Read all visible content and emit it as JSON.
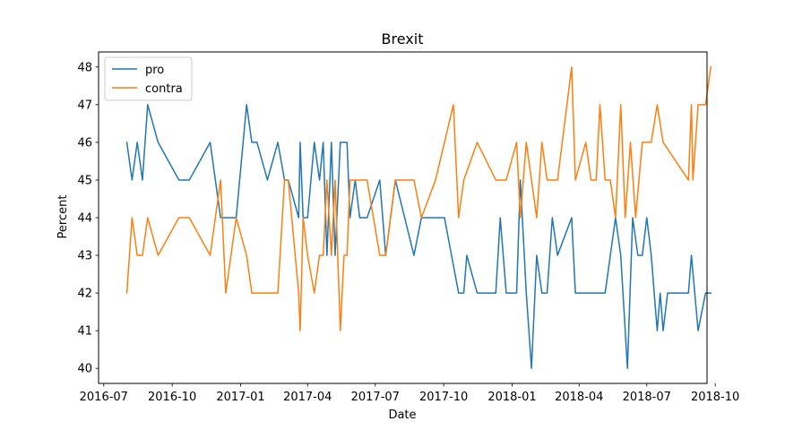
{
  "chart_data": {
    "type": "line",
    "title": "Brexit",
    "xlabel": "Date",
    "ylabel": "Percent",
    "xlim": [
      "2016-06-24",
      "2018-09-20"
    ],
    "ylim": [
      39.6,
      48.4
    ],
    "yticks": [
      40,
      41,
      42,
      43,
      44,
      45,
      46,
      47,
      48
    ],
    "xticks": [
      "2016-07",
      "2016-10",
      "2017-01",
      "2017-04",
      "2017-07",
      "2017-10",
      "2018-01",
      "2018-04",
      "2018-07",
      "2018-10"
    ],
    "grid": false,
    "legend_position": "top-left",
    "series": [
      {
        "name": "pro",
        "color": "#1f77b4",
        "points": [
          [
            "2016-08-01",
            46
          ],
          [
            "2016-08-08",
            45
          ],
          [
            "2016-08-15",
            46
          ],
          [
            "2016-08-22",
            45
          ],
          [
            "2016-08-29",
            47
          ],
          [
            "2016-09-12",
            46
          ],
          [
            "2016-10-10",
            45
          ],
          [
            "2016-10-24",
            45
          ],
          [
            "2016-11-21",
            46
          ],
          [
            "2016-12-05",
            44
          ],
          [
            "2016-12-12",
            44
          ],
          [
            "2016-12-26",
            44
          ],
          [
            "2017-01-09",
            47
          ],
          [
            "2017-01-16",
            46
          ],
          [
            "2017-01-23",
            46
          ],
          [
            "2017-02-06",
            45
          ],
          [
            "2017-02-20",
            46
          ],
          [
            "2017-03-01",
            45
          ],
          [
            "2017-03-06",
            45
          ],
          [
            "2017-03-20",
            44
          ],
          [
            "2017-03-22",
            46
          ],
          [
            "2017-03-26",
            44
          ],
          [
            "2017-04-01",
            44
          ],
          [
            "2017-04-10",
            46
          ],
          [
            "2017-04-17",
            45
          ],
          [
            "2017-04-22",
            46
          ],
          [
            "2017-04-27",
            43
          ],
          [
            "2017-05-03",
            46
          ],
          [
            "2017-05-08",
            43
          ],
          [
            "2017-05-15",
            46
          ],
          [
            "2017-05-20",
            46
          ],
          [
            "2017-05-24",
            46
          ],
          [
            "2017-05-28",
            44
          ],
          [
            "2017-06-04",
            45
          ],
          [
            "2017-06-10",
            44
          ],
          [
            "2017-06-20",
            44
          ],
          [
            "2017-07-07",
            45
          ],
          [
            "2017-07-15",
            43
          ],
          [
            "2017-07-28",
            45
          ],
          [
            "2017-08-22",
            43
          ],
          [
            "2017-09-01",
            44
          ],
          [
            "2017-09-20",
            44
          ],
          [
            "2017-10-02",
            44
          ],
          [
            "2017-10-21",
            42
          ],
          [
            "2017-10-28",
            42
          ],
          [
            "2017-11-01",
            43
          ],
          [
            "2017-11-15",
            42
          ],
          [
            "2017-12-10",
            42
          ],
          [
            "2017-12-16",
            44
          ],
          [
            "2017-12-24",
            42
          ],
          [
            "2018-01-07",
            42
          ],
          [
            "2018-01-12",
            45
          ],
          [
            "2018-01-20",
            42
          ],
          [
            "2018-01-27",
            40
          ],
          [
            "2018-02-03",
            43
          ],
          [
            "2018-02-10",
            42
          ],
          [
            "2018-02-17",
            42
          ],
          [
            "2018-02-24",
            44
          ],
          [
            "2018-03-03",
            43
          ],
          [
            "2018-03-22",
            44
          ],
          [
            "2018-03-27",
            42
          ],
          [
            "2018-04-03",
            42
          ],
          [
            "2018-04-10",
            42
          ],
          [
            "2018-05-06",
            42
          ],
          [
            "2018-05-13",
            43
          ],
          [
            "2018-05-20",
            44
          ],
          [
            "2018-05-27",
            43
          ],
          [
            "2018-06-05",
            40
          ],
          [
            "2018-06-12",
            44
          ],
          [
            "2018-06-19",
            43
          ],
          [
            "2018-06-25",
            43
          ],
          [
            "2018-07-01",
            44
          ],
          [
            "2018-07-07",
            43
          ],
          [
            "2018-07-15",
            41
          ],
          [
            "2018-07-19",
            42
          ],
          [
            "2018-07-23",
            41
          ],
          [
            "2018-07-29",
            42
          ],
          [
            "2018-08-04",
            42
          ],
          [
            "2018-08-11",
            42
          ],
          [
            "2018-08-26",
            42
          ],
          [
            "2018-08-30",
            43
          ],
          [
            "2018-09-08",
            41
          ],
          [
            "2018-09-18",
            42
          ],
          [
            "2018-09-25",
            42
          ]
        ]
      },
      {
        "name": "contra",
        "color": "#ff7f0e",
        "points": [
          [
            "2016-08-01",
            42
          ],
          [
            "2016-08-08",
            44
          ],
          [
            "2016-08-15",
            43
          ],
          [
            "2016-08-22",
            43
          ],
          [
            "2016-08-29",
            44
          ],
          [
            "2016-09-12",
            43
          ],
          [
            "2016-10-10",
            44
          ],
          [
            "2016-10-24",
            44
          ],
          [
            "2016-11-21",
            43
          ],
          [
            "2016-12-05",
            45
          ],
          [
            "2016-12-12",
            42
          ],
          [
            "2016-12-26",
            44
          ],
          [
            "2017-01-09",
            43
          ],
          [
            "2017-01-16",
            42
          ],
          [
            "2017-01-23",
            42
          ],
          [
            "2017-02-06",
            42
          ],
          [
            "2017-02-20",
            42
          ],
          [
            "2017-03-01",
            45
          ],
          [
            "2017-03-06",
            45
          ],
          [
            "2017-03-20",
            42
          ],
          [
            "2017-03-22",
            41
          ],
          [
            "2017-03-26",
            44
          ],
          [
            "2017-04-01",
            43
          ],
          [
            "2017-04-10",
            42
          ],
          [
            "2017-04-17",
            43
          ],
          [
            "2017-04-22",
            43
          ],
          [
            "2017-04-27",
            45
          ],
          [
            "2017-05-03",
            43
          ],
          [
            "2017-05-08",
            45
          ],
          [
            "2017-05-15",
            41
          ],
          [
            "2017-05-20",
            43
          ],
          [
            "2017-05-24",
            43
          ],
          [
            "2017-05-28",
            45
          ],
          [
            "2017-06-04",
            45
          ],
          [
            "2017-06-10",
            45
          ],
          [
            "2017-06-20",
            45
          ],
          [
            "2017-07-07",
            43
          ],
          [
            "2017-07-15",
            43
          ],
          [
            "2017-07-28",
            45
          ],
          [
            "2017-08-22",
            45
          ],
          [
            "2017-09-01",
            44
          ],
          [
            "2017-09-20",
            45
          ],
          [
            "2017-10-02",
            46
          ],
          [
            "2017-10-14",
            47
          ],
          [
            "2017-10-21",
            44
          ],
          [
            "2017-10-28",
            45
          ],
          [
            "2017-11-15",
            46
          ],
          [
            "2017-12-10",
            45
          ],
          [
            "2017-12-24",
            45
          ],
          [
            "2018-01-07",
            46
          ],
          [
            "2018-01-12",
            44
          ],
          [
            "2018-01-20",
            46
          ],
          [
            "2018-02-03",
            44
          ],
          [
            "2018-02-10",
            46
          ],
          [
            "2018-02-17",
            45
          ],
          [
            "2018-02-24",
            45
          ],
          [
            "2018-03-03",
            45
          ],
          [
            "2018-03-22",
            48
          ],
          [
            "2018-03-27",
            45
          ],
          [
            "2018-04-10",
            46
          ],
          [
            "2018-04-17",
            45
          ],
          [
            "2018-04-24",
            45
          ],
          [
            "2018-04-29",
            47
          ],
          [
            "2018-05-06",
            45
          ],
          [
            "2018-05-13",
            45
          ],
          [
            "2018-05-20",
            44
          ],
          [
            "2018-05-27",
            47
          ],
          [
            "2018-06-02",
            44
          ],
          [
            "2018-06-09",
            46
          ],
          [
            "2018-06-16",
            44
          ],
          [
            "2018-06-25",
            46
          ],
          [
            "2018-07-07",
            46
          ],
          [
            "2018-07-15",
            47
          ],
          [
            "2018-07-23",
            46
          ],
          [
            "2018-08-26",
            45
          ],
          [
            "2018-08-30",
            47
          ],
          [
            "2018-09-01",
            45
          ],
          [
            "2018-09-08",
            47
          ],
          [
            "2018-09-18",
            47
          ],
          [
            "2018-09-25",
            48
          ]
        ]
      }
    ]
  }
}
